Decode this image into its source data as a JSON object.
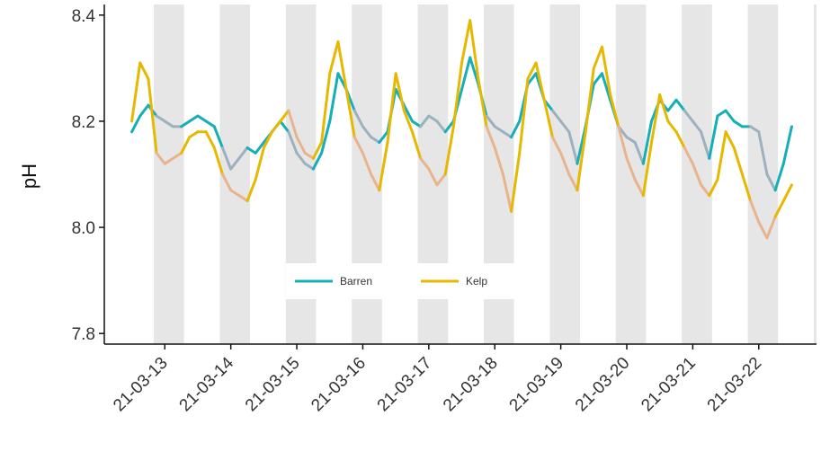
{
  "chart_data": {
    "type": "line",
    "title": "",
    "xlabel": "",
    "ylabel": "pH",
    "ylim": [
      7.78,
      8.42
    ],
    "y_ticks": [
      7.8,
      8.0,
      8.2,
      8.4
    ],
    "y_tick_labels": [
      "7.8",
      "8.0",
      "8.2",
      "8.4"
    ],
    "x_ticks": [
      "21-03-13",
      "21-03-14",
      "21-03-15",
      "21-03-16",
      "21-03-17",
      "21-03-18",
      "21-03-19",
      "21-03-20",
      "21-03-21",
      "21-03-22"
    ],
    "x_range": [
      "21-03-12 02:00",
      "21-03-22 21:00"
    ],
    "night_bands": [
      [
        "21-03-12 20:00",
        "21-03-13 07:00"
      ],
      [
        "21-03-13 20:00",
        "21-03-14 07:00"
      ],
      [
        "21-03-14 20:00",
        "21-03-15 07:00"
      ],
      [
        "21-03-15 20:00",
        "21-03-16 07:00"
      ],
      [
        "21-03-16 20:00",
        "21-03-17 07:00"
      ],
      [
        "21-03-17 20:00",
        "21-03-18 07:00"
      ],
      [
        "21-03-18 20:00",
        "21-03-19 07:00"
      ],
      [
        "21-03-19 20:00",
        "21-03-20 07:00"
      ],
      [
        "21-03-20 20:00",
        "21-03-21 07:00"
      ],
      [
        "21-03-21 20:00",
        "21-03-22 07:00"
      ],
      [
        "21-03-22 20:00",
        "21-03-22 21:00"
      ]
    ],
    "legend_position": "bottom-center",
    "grid": false,
    "series": [
      {
        "name": "Barren",
        "color": "#14AFB9",
        "night_color": "#9BB2BE",
        "points": [
          [
            "21-03-12 12:00",
            8.18
          ],
          [
            "21-03-12 15:00",
            8.21
          ],
          [
            "21-03-12 18:00",
            8.23
          ],
          [
            "21-03-12 21:00",
            8.21
          ],
          [
            "21-03-13 00:00",
            8.2
          ],
          [
            "21-03-13 03:00",
            8.19
          ],
          [
            "21-03-13 06:00",
            8.19
          ],
          [
            "21-03-13 09:00",
            8.2
          ],
          [
            "21-03-13 12:00",
            8.21
          ],
          [
            "21-03-13 15:00",
            8.2
          ],
          [
            "21-03-13 18:00",
            8.19
          ],
          [
            "21-03-13 21:00",
            8.15
          ],
          [
            "21-03-14 00:00",
            8.11
          ],
          [
            "21-03-14 03:00",
            8.13
          ],
          [
            "21-03-14 06:00",
            8.15
          ],
          [
            "21-03-14 09:00",
            8.14
          ],
          [
            "21-03-14 12:00",
            8.16
          ],
          [
            "21-03-14 15:00",
            8.18
          ],
          [
            "21-03-14 18:00",
            8.2
          ],
          [
            "21-03-14 21:00",
            8.18
          ],
          [
            "21-03-15 00:00",
            8.14
          ],
          [
            "21-03-15 03:00",
            8.12
          ],
          [
            "21-03-15 06:00",
            8.11
          ],
          [
            "21-03-15 09:00",
            8.14
          ],
          [
            "21-03-15 12:00",
            8.2
          ],
          [
            "21-03-15 15:00",
            8.29
          ],
          [
            "21-03-15 18:00",
            8.26
          ],
          [
            "21-03-15 21:00",
            8.22
          ],
          [
            "21-03-16 00:00",
            8.19
          ],
          [
            "21-03-16 03:00",
            8.17
          ],
          [
            "21-03-16 06:00",
            8.16
          ],
          [
            "21-03-16 09:00",
            8.18
          ],
          [
            "21-03-16 12:00",
            8.26
          ],
          [
            "21-03-16 15:00",
            8.23
          ],
          [
            "21-03-16 18:00",
            8.2
          ],
          [
            "21-03-16 21:00",
            8.19
          ],
          [
            "21-03-17 00:00",
            8.21
          ],
          [
            "21-03-17 03:00",
            8.2
          ],
          [
            "21-03-17 06:00",
            8.18
          ],
          [
            "21-03-17 09:00",
            8.2
          ],
          [
            "21-03-17 12:00",
            8.26
          ],
          [
            "21-03-17 15:00",
            8.32
          ],
          [
            "21-03-17 18:00",
            8.27
          ],
          [
            "21-03-17 21:00",
            8.21
          ],
          [
            "21-03-18 00:00",
            8.19
          ],
          [
            "21-03-18 03:00",
            8.18
          ],
          [
            "21-03-18 06:00",
            8.17
          ],
          [
            "21-03-18 09:00",
            8.2
          ],
          [
            "21-03-18 12:00",
            8.27
          ],
          [
            "21-03-18 15:00",
            8.29
          ],
          [
            "21-03-18 18:00",
            8.24
          ],
          [
            "21-03-18 21:00",
            8.22
          ],
          [
            "21-03-19 00:00",
            8.2
          ],
          [
            "21-03-19 03:00",
            8.18
          ],
          [
            "21-03-19 06:00",
            8.12
          ],
          [
            "21-03-19 09:00",
            8.19
          ],
          [
            "21-03-19 12:00",
            8.27
          ],
          [
            "21-03-19 15:00",
            8.29
          ],
          [
            "21-03-19 18:00",
            8.24
          ],
          [
            "21-03-19 21:00",
            8.19
          ],
          [
            "21-03-20 00:00",
            8.17
          ],
          [
            "21-03-20 03:00",
            8.16
          ],
          [
            "21-03-20 06:00",
            8.12
          ],
          [
            "21-03-20 09:00",
            8.2
          ],
          [
            "21-03-20 12:00",
            8.24
          ],
          [
            "21-03-20 15:00",
            8.22
          ],
          [
            "21-03-20 18:00",
            8.24
          ],
          [
            "21-03-20 21:00",
            8.22
          ],
          [
            "21-03-21 00:00",
            8.2
          ],
          [
            "21-03-21 03:00",
            8.18
          ],
          [
            "21-03-21 06:00",
            8.13
          ],
          [
            "21-03-21 09:00",
            8.21
          ],
          [
            "21-03-21 12:00",
            8.22
          ],
          [
            "21-03-21 15:00",
            8.2
          ],
          [
            "21-03-21 18:00",
            8.19
          ],
          [
            "21-03-21 21:00",
            8.19
          ],
          [
            "21-03-22 00:00",
            8.18
          ],
          [
            "21-03-22 03:00",
            8.1
          ],
          [
            "21-03-22 06:00",
            8.07
          ],
          [
            "21-03-22 09:00",
            8.12
          ],
          [
            "21-03-22 12:00",
            8.19
          ]
        ]
      },
      {
        "name": "Kelp",
        "color": "#E6B800",
        "night_color": "#E8B48E",
        "points": [
          [
            "21-03-12 12:00",
            8.2
          ],
          [
            "21-03-12 15:00",
            8.31
          ],
          [
            "21-03-12 18:00",
            8.28
          ],
          [
            "21-03-12 21:00",
            8.14
          ],
          [
            "21-03-13 00:00",
            8.12
          ],
          [
            "21-03-13 03:00",
            8.13
          ],
          [
            "21-03-13 06:00",
            8.14
          ],
          [
            "21-03-13 09:00",
            8.17
          ],
          [
            "21-03-13 12:00",
            8.18
          ],
          [
            "21-03-13 15:00",
            8.18
          ],
          [
            "21-03-13 18:00",
            8.15
          ],
          [
            "21-03-13 21:00",
            8.1
          ],
          [
            "21-03-14 00:00",
            8.07
          ],
          [
            "21-03-14 03:00",
            8.06
          ],
          [
            "21-03-14 06:00",
            8.05
          ],
          [
            "21-03-14 09:00",
            8.09
          ],
          [
            "21-03-14 12:00",
            8.15
          ],
          [
            "21-03-14 15:00",
            8.18
          ],
          [
            "21-03-14 18:00",
            8.2
          ],
          [
            "21-03-14 21:00",
            8.22
          ],
          [
            "21-03-15 00:00",
            8.17
          ],
          [
            "21-03-15 03:00",
            8.14
          ],
          [
            "21-03-15 06:00",
            8.13
          ],
          [
            "21-03-15 09:00",
            8.16
          ],
          [
            "21-03-15 12:00",
            8.29
          ],
          [
            "21-03-15 15:00",
            8.35
          ],
          [
            "21-03-15 18:00",
            8.26
          ],
          [
            "21-03-15 21:00",
            8.17
          ],
          [
            "21-03-16 00:00",
            8.14
          ],
          [
            "21-03-16 03:00",
            8.1
          ],
          [
            "21-03-16 06:00",
            8.07
          ],
          [
            "21-03-16 09:00",
            8.16
          ],
          [
            "21-03-16 12:00",
            8.29
          ],
          [
            "21-03-16 15:00",
            8.22
          ],
          [
            "21-03-16 18:00",
            8.18
          ],
          [
            "21-03-16 21:00",
            8.13
          ],
          [
            "21-03-17 00:00",
            8.11
          ],
          [
            "21-03-17 03:00",
            8.08
          ],
          [
            "21-03-17 06:00",
            8.1
          ],
          [
            "21-03-17 09:00",
            8.19
          ],
          [
            "21-03-17 12:00",
            8.31
          ],
          [
            "21-03-17 15:00",
            8.39
          ],
          [
            "21-03-17 18:00",
            8.28
          ],
          [
            "21-03-17 21:00",
            8.19
          ],
          [
            "21-03-18 00:00",
            8.15
          ],
          [
            "21-03-18 03:00",
            8.1
          ],
          [
            "21-03-18 06:00",
            8.03
          ],
          [
            "21-03-18 09:00",
            8.14
          ],
          [
            "21-03-18 12:00",
            8.28
          ],
          [
            "21-03-18 15:00",
            8.31
          ],
          [
            "21-03-18 18:00",
            8.24
          ],
          [
            "21-03-18 21:00",
            8.17
          ],
          [
            "21-03-19 00:00",
            8.14
          ],
          [
            "21-03-19 03:00",
            8.1
          ],
          [
            "21-03-19 06:00",
            8.07
          ],
          [
            "21-03-19 09:00",
            8.18
          ],
          [
            "21-03-19 12:00",
            8.3
          ],
          [
            "21-03-19 15:00",
            8.34
          ],
          [
            "21-03-19 18:00",
            8.25
          ],
          [
            "21-03-19 21:00",
            8.19
          ],
          [
            "21-03-20 00:00",
            8.13
          ],
          [
            "21-03-20 03:00",
            8.09
          ],
          [
            "21-03-20 06:00",
            8.06
          ],
          [
            "21-03-20 09:00",
            8.16
          ],
          [
            "21-03-20 12:00",
            8.25
          ],
          [
            "21-03-20 15:00",
            8.2
          ],
          [
            "21-03-20 18:00",
            8.18
          ],
          [
            "21-03-20 21:00",
            8.15
          ],
          [
            "21-03-21 00:00",
            8.12
          ],
          [
            "21-03-21 03:00",
            8.08
          ],
          [
            "21-03-21 06:00",
            8.06
          ],
          [
            "21-03-21 09:00",
            8.09
          ],
          [
            "21-03-21 12:00",
            8.18
          ],
          [
            "21-03-21 15:00",
            8.15
          ],
          [
            "21-03-21 18:00",
            8.1
          ],
          [
            "21-03-21 21:00",
            8.05
          ],
          [
            "21-03-22 00:00",
            8.01
          ],
          [
            "21-03-22 03:00",
            7.98
          ],
          [
            "21-03-22 06:00",
            8.02
          ],
          [
            "21-03-22 09:00",
            8.05
          ],
          [
            "21-03-22 12:00",
            8.08
          ]
        ]
      }
    ]
  }
}
